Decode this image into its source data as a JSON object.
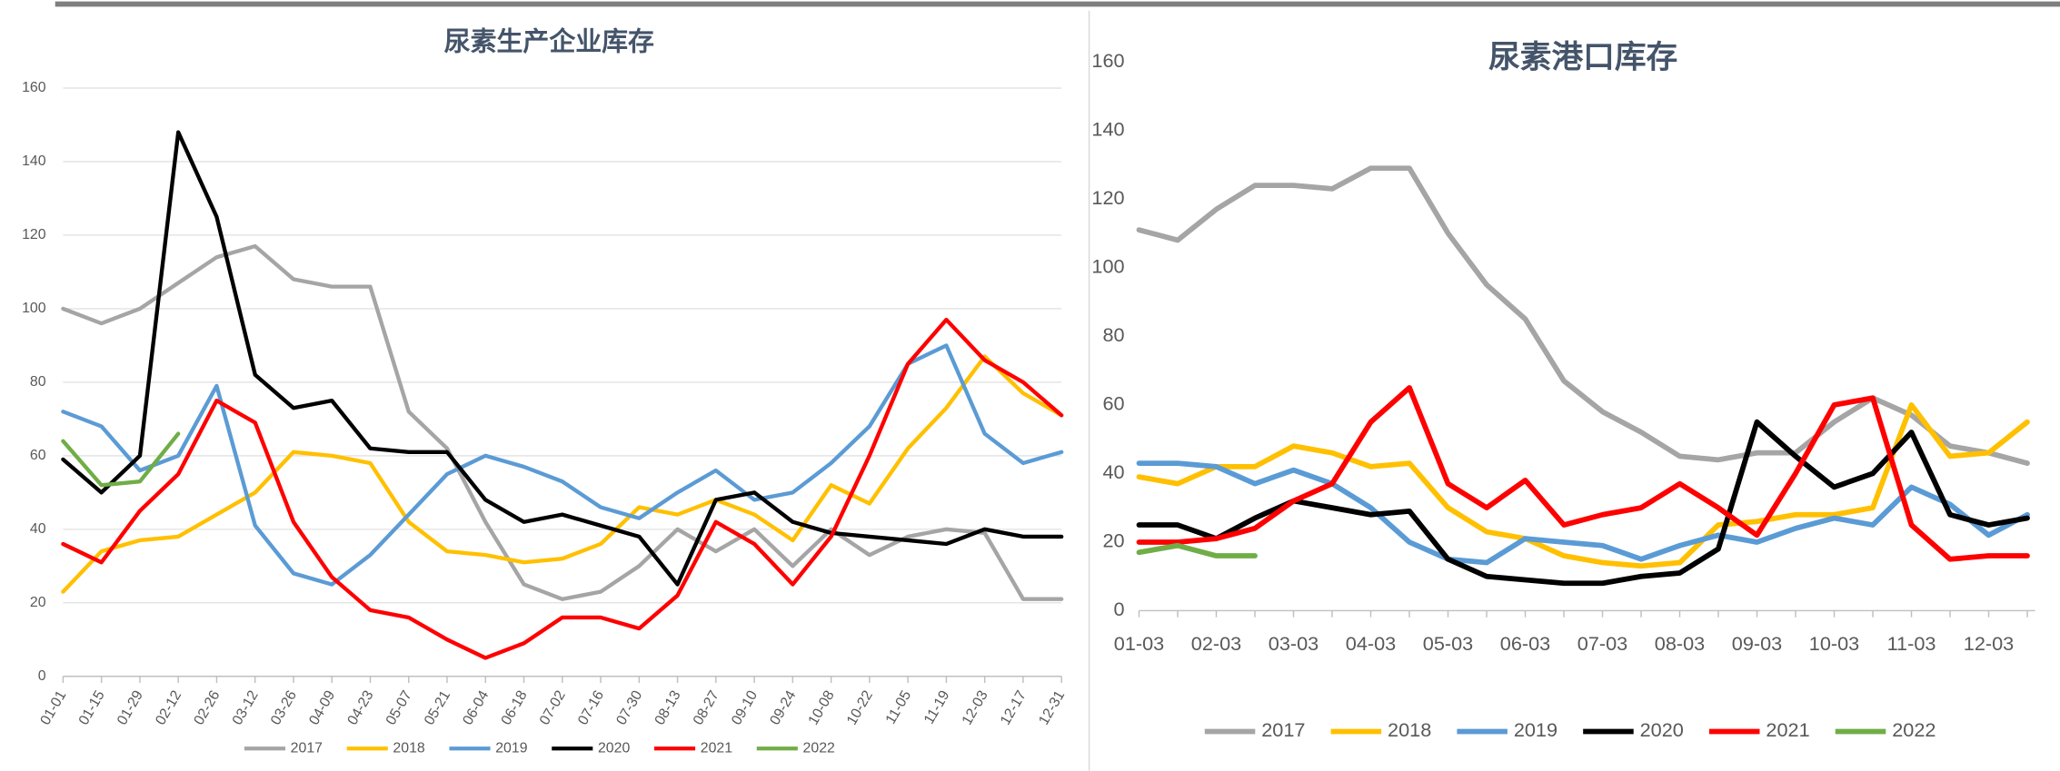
{
  "chart_data": [
    {
      "type": "line",
      "title": "尿素生产企业库存",
      "categories": [
        "01-01",
        "01-15",
        "01-29",
        "02-12",
        "02-26",
        "03-12",
        "03-26",
        "04-09",
        "04-23",
        "05-07",
        "05-21",
        "06-04",
        "06-18",
        "07-02",
        "07-16",
        "07-30",
        "08-13",
        "08-27",
        "09-10",
        "09-24",
        "10-08",
        "10-22",
        "11-05",
        "11-19",
        "12-03",
        "12-17",
        "12-31"
      ],
      "ylim": [
        0,
        160
      ],
      "yticks": [
        0,
        20,
        40,
        60,
        80,
        100,
        120,
        140,
        160
      ],
      "grid": true,
      "series": [
        {
          "name": "2017",
          "color": "#a5a5a5",
          "values": [
            100,
            96,
            100,
            107,
            114,
            117,
            108,
            106,
            106,
            72,
            62,
            42,
            25,
            21,
            23,
            30,
            40,
            34,
            40,
            30,
            40,
            33,
            38,
            40,
            39,
            21,
            21
          ]
        },
        {
          "name": "2018",
          "color": "#ffc000",
          "values": [
            23,
            34,
            37,
            38,
            44,
            50,
            61,
            60,
            58,
            42,
            34,
            33,
            31,
            32,
            36,
            46,
            44,
            48,
            44,
            37,
            52,
            47,
            62,
            73,
            87,
            77,
            71
          ]
        },
        {
          "name": "2019",
          "color": "#5b9bd5",
          "values": [
            72,
            68,
            56,
            60,
            79,
            41,
            28,
            25,
            33,
            44,
            55,
            60,
            57,
            53,
            46,
            43,
            50,
            56,
            48,
            50,
            58,
            68,
            85,
            90,
            66,
            58,
            61
          ]
        },
        {
          "name": "2020",
          "color": "#000000",
          "values": [
            59,
            50,
            60,
            148,
            125,
            82,
            73,
            75,
            62,
            61,
            61,
            48,
            42,
            44,
            41,
            38,
            25,
            48,
            50,
            42,
            39,
            38,
            37,
            36,
            40,
            38,
            38
          ]
        },
        {
          "name": "2021",
          "color": "#ff0000",
          "values": [
            36,
            31,
            45,
            55,
            75,
            69,
            42,
            27,
            18,
            16,
            10,
            5,
            9,
            16,
            16,
            13,
            22,
            42,
            36,
            25,
            38,
            60,
            85,
            97,
            86,
            80,
            71
          ]
        },
        {
          "name": "2022",
          "color": "#70ad47",
          "values": [
            64,
            52,
            53,
            66,
            null,
            null,
            null,
            null,
            null,
            null,
            null,
            null,
            null,
            null,
            null,
            null,
            null,
            null,
            null,
            null,
            null,
            null,
            null,
            null,
            null,
            null,
            null
          ]
        }
      ]
    },
    {
      "type": "line",
      "title": "尿素港口库存",
      "categories": [
        "01-03",
        null,
        "02-03",
        null,
        "03-03",
        null,
        "04-03",
        null,
        "05-03",
        null,
        "06-03",
        null,
        "07-03",
        null,
        "08-03",
        null,
        "09-03",
        null,
        "10-03",
        null,
        "11-03",
        null,
        "12-03",
        null
      ],
      "ylim": [
        0,
        160
      ],
      "yticks": [
        0,
        20,
        40,
        60,
        80,
        100,
        120,
        140,
        160
      ],
      "grid": false,
      "series": [
        {
          "name": "2017",
          "color": "#a5a5a5",
          "values": [
            111,
            108,
            117,
            124,
            124,
            123,
            129,
            129,
            110,
            95,
            85,
            67,
            58,
            52,
            45,
            44,
            46,
            46,
            55,
            62,
            57,
            48,
            46,
            43
          ]
        },
        {
          "name": "2018",
          "color": "#ffc000",
          "values": [
            39,
            37,
            42,
            42,
            48,
            46,
            42,
            43,
            30,
            23,
            21,
            16,
            14,
            13,
            14,
            25,
            26,
            28,
            28,
            30,
            60,
            45,
            46,
            55
          ]
        },
        {
          "name": "2019",
          "color": "#5b9bd5",
          "values": [
            43,
            43,
            42,
            37,
            41,
            37,
            30,
            20,
            15,
            14,
            21,
            20,
            19,
            15,
            19,
            22,
            20,
            24,
            27,
            25,
            36,
            31,
            22,
            28
          ]
        },
        {
          "name": "2020",
          "color": "#000000",
          "values": [
            25,
            25,
            21,
            27,
            32,
            30,
            28,
            29,
            15,
            10,
            9,
            8,
            8,
            10,
            11,
            18,
            55,
            45,
            36,
            40,
            52,
            28,
            25,
            27
          ]
        },
        {
          "name": "2021",
          "color": "#ff0000",
          "values": [
            20,
            20,
            21,
            24,
            32,
            37,
            55,
            65,
            37,
            30,
            38,
            25,
            28,
            30,
            37,
            30,
            22,
            40,
            60,
            62,
            25,
            15,
            16,
            16
          ]
        },
        {
          "name": "2022",
          "color": "#70ad47",
          "values": [
            17,
            19,
            16,
            16,
            null,
            null,
            null,
            null,
            null,
            null,
            null,
            null,
            null,
            null,
            null,
            null,
            null,
            null,
            null,
            null,
            null,
            null,
            null,
            null
          ]
        }
      ]
    }
  ]
}
